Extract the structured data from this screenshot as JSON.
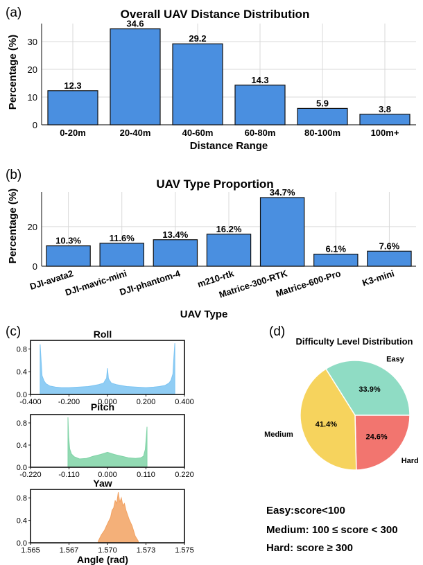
{
  "panels": {
    "a_tag": "(a)",
    "b_tag": "(b)",
    "c_tag": "(c)",
    "d_tag": "(d)"
  },
  "colors": {
    "bar": "#4a8fe0",
    "roll": "#7cc4f2",
    "pitch": "#7fd3a6",
    "yaw": "#f2a262",
    "easy": "#8fdcc4",
    "medium": "#f6d35d",
    "hard": "#f2756f",
    "grid": "#d9d9d9"
  },
  "chart_data": [
    {
      "id": "a",
      "type": "bar",
      "title": "Overall UAV Distance Distribution",
      "xlabel": "Distance Range",
      "ylabel": "Percentage (%)",
      "categories": [
        "0-20m",
        "20-40m",
        "40-60m",
        "60-80m",
        "80-100m",
        "100m+"
      ],
      "values": [
        12.3,
        34.6,
        29.2,
        14.3,
        5.9,
        3.8
      ],
      "value_labels": [
        "12.3",
        "34.6",
        "29.2",
        "14.3",
        "5.9",
        "3.8"
      ],
      "ylim": [
        0,
        36.5
      ],
      "yticks": [
        0,
        10,
        20,
        30
      ],
      "grid": true
    },
    {
      "id": "b",
      "type": "bar",
      "title": "UAV Type Proportion",
      "xlabel": "UAV Type",
      "ylabel": "Percentage (%)",
      "categories": [
        "DJI-avata2",
        "DJI-mavic-mini",
        "DJI-phantom-4",
        "m210-rtk",
        "Matrice-300-RTK",
        "Matrice-600-Pro",
        "K3-mini"
      ],
      "values": [
        10.3,
        11.6,
        13.4,
        16.2,
        34.7,
        6.1,
        7.6
      ],
      "value_labels": [
        "10.3%",
        "11.6%",
        "13.4%",
        "16.2%",
        "34.7%",
        "6.1%",
        "7.6%"
      ],
      "ylim": [
        0,
        37.5
      ],
      "yticks": [
        0,
        20
      ],
      "grid": true
    },
    {
      "id": "c-roll",
      "type": "area",
      "title": "Roll",
      "xlim": [
        -0.4,
        0.4
      ],
      "xticks": [
        -0.4,
        -0.2,
        0.0,
        0.2,
        0.4
      ],
      "xtick_labels": [
        "-0.400",
        "-0.200",
        "0.000",
        "0.200",
        "0.400"
      ],
      "ylim": [
        0,
        0.95
      ],
      "yticks": [
        0.0,
        0.4,
        0.8
      ],
      "ytick_labels": [
        "0.0",
        "0.4",
        "0.8"
      ],
      "x": [
        -0.35,
        -0.345,
        -0.34,
        -0.33,
        -0.32,
        -0.3,
        -0.27,
        -0.24,
        -0.2,
        -0.15,
        -0.1,
        -0.05,
        -0.02,
        -0.01,
        -0.005,
        0.0,
        0.005,
        0.01,
        0.02,
        0.05,
        0.1,
        0.15,
        0.2,
        0.24,
        0.27,
        0.3,
        0.32,
        0.33,
        0.34,
        0.345,
        0.35
      ],
      "y": [
        0.88,
        0.6,
        0.33,
        0.24,
        0.19,
        0.15,
        0.13,
        0.12,
        0.12,
        0.13,
        0.14,
        0.17,
        0.2,
        0.26,
        0.28,
        0.46,
        0.28,
        0.25,
        0.2,
        0.17,
        0.14,
        0.13,
        0.12,
        0.13,
        0.14,
        0.16,
        0.2,
        0.25,
        0.36,
        0.65,
        0.9
      ]
    },
    {
      "id": "c-pitch",
      "type": "area",
      "title": "Pitch",
      "xlim": [
        -0.22,
        0.22
      ],
      "xticks": [
        -0.22,
        -0.11,
        0.0,
        0.11,
        0.22
      ],
      "xtick_labels": [
        "-0.220",
        "-0.110",
        "0.000",
        "0.110",
        "0.220"
      ],
      "ylim": [
        0,
        0.95
      ],
      "yticks": [
        0.0,
        0.4,
        0.8
      ],
      "ytick_labels": [
        "0.0",
        "0.4",
        "0.8"
      ],
      "x": [
        -0.113,
        -0.111,
        -0.108,
        -0.103,
        -0.095,
        -0.08,
        -0.06,
        -0.04,
        -0.02,
        0.0,
        0.02,
        0.04,
        0.06,
        0.08,
        0.095,
        0.103,
        0.108,
        0.111,
        0.113
      ],
      "y": [
        0.9,
        0.55,
        0.33,
        0.24,
        0.19,
        0.15,
        0.16,
        0.2,
        0.23,
        0.27,
        0.23,
        0.2,
        0.17,
        0.16,
        0.17,
        0.2,
        0.32,
        0.55,
        0.73
      ]
    },
    {
      "id": "c-yaw",
      "type": "area",
      "title": "Yaw",
      "xlabel": "Angle (rad)",
      "xlim": [
        1.565,
        1.575
      ],
      "xticks": [
        1.565,
        1.5675,
        1.57,
        1.5725,
        1.575
      ],
      "xtick_labels": [
        "1.565",
        "1.567",
        "1.570",
        "1.573",
        "1.575"
      ],
      "ylim": [
        0,
        0.95
      ],
      "yticks": [
        0.0,
        0.4,
        0.8
      ],
      "ytick_labels": [
        "0.0",
        "0.4",
        "0.8"
      ],
      "x": [
        1.5694,
        1.5696,
        1.5698,
        1.57,
        1.5702,
        1.5703,
        1.5704,
        1.5705,
        1.5706,
        1.5707,
        1.5708,
        1.5709,
        1.571,
        1.5711,
        1.5712,
        1.5713,
        1.5714,
        1.5716,
        1.5718,
        1.572
      ],
      "y": [
        0.03,
        0.14,
        0.22,
        0.34,
        0.45,
        0.58,
        0.62,
        0.75,
        0.7,
        0.9,
        0.72,
        0.8,
        0.66,
        0.7,
        0.58,
        0.5,
        0.42,
        0.3,
        0.12,
        0.03
      ]
    },
    {
      "id": "d",
      "type": "pie",
      "title": "Difficulty Level Distribution",
      "labels": [
        "Easy",
        "Hard",
        "Medium"
      ],
      "values": [
        33.9,
        24.6,
        41.4
      ],
      "value_labels": [
        "33.9%",
        "24.6%",
        "41.4%"
      ],
      "colors": [
        "#8fdcc4",
        "#f2756f",
        "#f6d35d"
      ]
    }
  ],
  "notes": {
    "easy": "Easy:score<100",
    "medium": "Medium: 100 ≤ score < 300",
    "hard": "Hard: score ≥ 300"
  }
}
